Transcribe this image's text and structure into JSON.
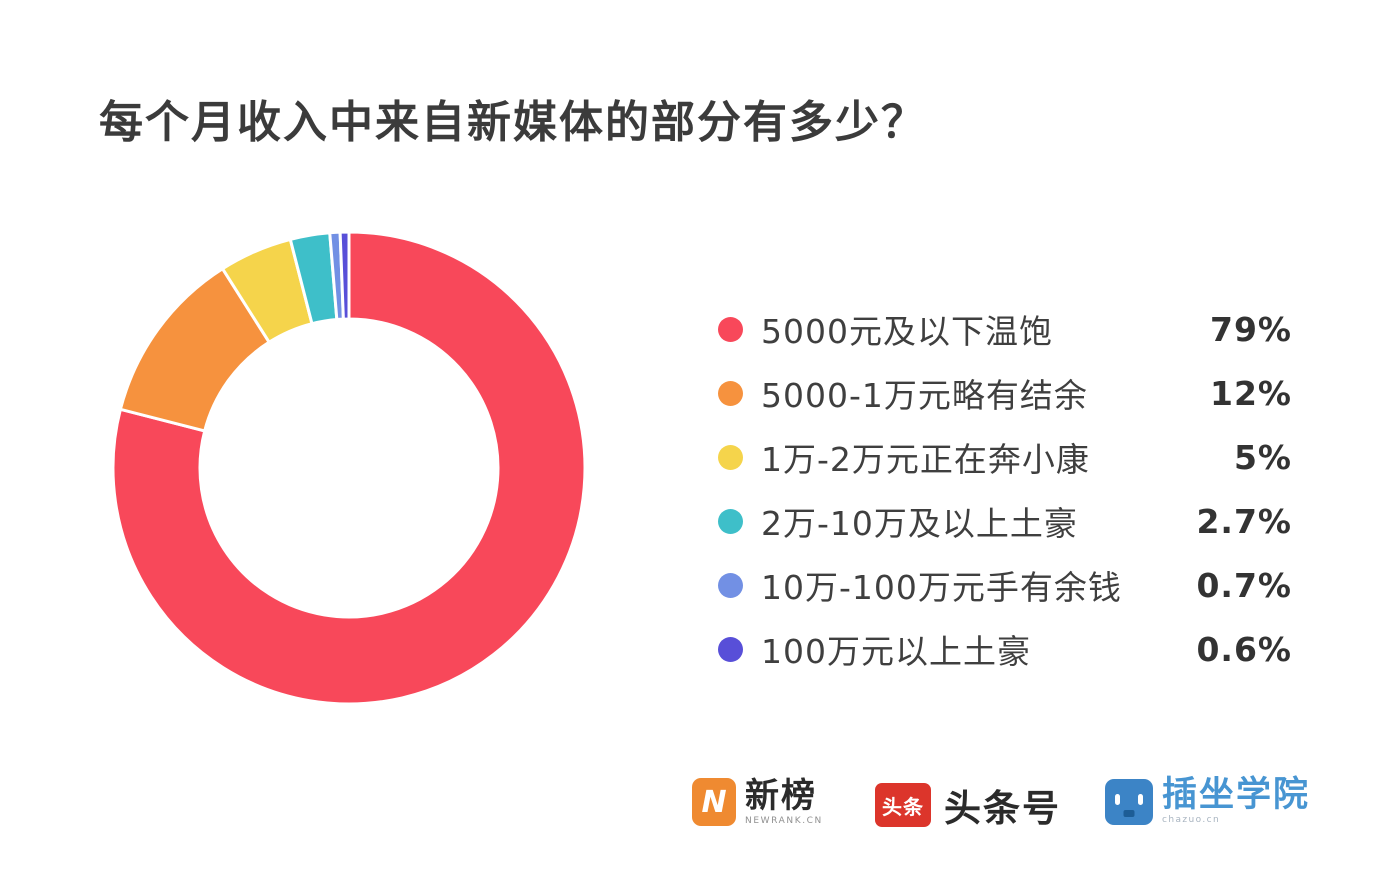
{
  "title": "每个月收入中来自新媒体的部分有多少？",
  "chart_data": {
    "type": "pie",
    "subtype": "donut",
    "title": "每个月收入中来自新媒体的部分有多少？",
    "categories": [
      "5000元及以下温饱",
      "5000-1万元略有结余",
      "1万-2万元正在奔小康",
      "2万-10万及以上土豪",
      "10万-100万元手有余钱",
      "100万元以上土豪"
    ],
    "values": [
      79,
      12,
      5,
      2.7,
      0.7,
      0.6
    ],
    "value_labels": [
      "79%",
      "12%",
      "5%",
      "2.7%",
      "0.7%",
      "0.6%"
    ],
    "colors": [
      "#F8485A",
      "#F6923E",
      "#F5D44B",
      "#3EBFC9",
      "#7290E4",
      "#584FD8"
    ],
    "start_angle_deg": 0,
    "direction": "clockwise",
    "donut_hole_ratio": 0.63,
    "slice_gap_color": "#FFFFFF",
    "legend_position": "right",
    "grid": "off"
  },
  "footer": {
    "logos": [
      {
        "id": "newrank",
        "badge_letter": "N",
        "badge_color": "#EF8A31",
        "brand_text": "新榜",
        "sub_text": "NEWRANK.CN"
      },
      {
        "id": "toutiao",
        "badge_text": "头条",
        "badge_color": "#DC352B",
        "brand_text": "头条号"
      },
      {
        "id": "chazuo",
        "badge_color": "#3C84C6",
        "brand_text": "插坐学院",
        "brand_color": "#4795D2",
        "sub_text": "chazuo.cn"
      }
    ]
  }
}
